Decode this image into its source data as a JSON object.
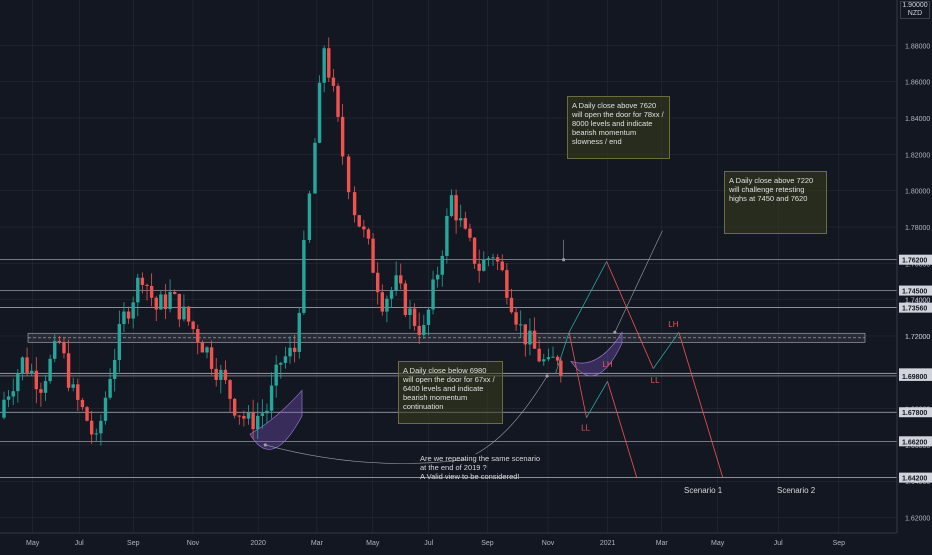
{
  "currency": {
    "line1": "1.90000",
    "line2": "NZD"
  },
  "colors": {
    "bg": "#131722",
    "up": "#26a69a",
    "down": "#ef5350",
    "grid": "#2a2e39",
    "level": "#b2b5be",
    "proj_up": "#26a69a",
    "proj_down": "#ef5350",
    "axis_text": "#b2b5be"
  },
  "chart_data": {
    "type": "candlestick",
    "ylim": [
      1.6115,
      1.905
    ],
    "y_ticks": [
      "1.62000",
      "1.64000",
      "1.66000",
      "1.68000",
      "1.70000",
      "1.72000",
      "1.74000",
      "1.76000",
      "1.78000",
      "1.80000",
      "1.82000",
      "1.84000",
      "1.86000",
      "1.88000"
    ],
    "y_tick_values": [
      1.62,
      1.64,
      1.66,
      1.68,
      1.7,
      1.72,
      1.74,
      1.76,
      1.78,
      1.8,
      1.82,
      1.84,
      1.86,
      1.88
    ],
    "x_ticks": [
      "May",
      "Jul",
      "Sep",
      "Nov",
      "2020",
      "Mar",
      "May",
      "Jul",
      "Sep",
      "Nov",
      "2021",
      "Mar",
      "May",
      "Jul",
      "Sep"
    ],
    "x_tick_pos": [
      0.035,
      0.085,
      0.143,
      0.207,
      0.277,
      0.34,
      0.4,
      0.46,
      0.523,
      0.588,
      0.652,
      0.71,
      0.77,
      0.835,
      0.9
    ],
    "price_levels": [
      {
        "label": "1.76200",
        "value": 1.762
      },
      {
        "label": "1.74500",
        "value": 1.745
      },
      {
        "label": "1.73560",
        "value": 1.7356
      },
      {
        "label": "1.69941",
        "value": 1.69941
      },
      {
        "label": "1.69800",
        "value": 1.698
      },
      {
        "label": "1.67800",
        "value": 1.678
      },
      {
        "label": "1.66200",
        "value": 1.662
      },
      {
        "label": "1.64200",
        "value": 1.642
      }
    ],
    "extra_axis_labels": [
      {
        "label": "1.74000",
        "value": 1.74
      },
      {
        "label": "1.72000",
        "value": 1.72
      }
    ],
    "zone": [
      1.7165,
      1.7215
    ],
    "zone_dashed": 1.719,
    "candles_ohlc_anchor": [
      [
        0.0,
        1.675,
        1.69,
        1.67,
        1.685
      ],
      [
        0.02,
        1.69,
        1.712,
        1.684,
        1.706
      ],
      [
        0.04,
        1.7,
        1.716,
        1.688,
        1.694
      ],
      [
        0.06,
        1.693,
        1.722,
        1.688,
        1.716
      ],
      [
        0.075,
        1.716,
        1.728,
        1.678,
        1.688
      ],
      [
        0.09,
        1.688,
        1.698,
        1.667,
        1.674
      ],
      [
        0.1,
        1.674,
        1.684,
        1.652,
        1.66
      ],
      [
        0.115,
        1.662,
        1.712,
        1.655,
        1.7
      ],
      [
        0.13,
        1.7,
        1.742,
        1.695,
        1.73
      ],
      [
        0.15,
        1.73,
        1.762,
        1.722,
        1.755
      ],
      [
        0.165,
        1.75,
        1.758,
        1.728,
        1.735
      ],
      [
        0.18,
        1.735,
        1.748,
        1.725,
        1.742
      ],
      [
        0.2,
        1.742,
        1.746,
        1.718,
        1.728
      ],
      [
        0.22,
        1.728,
        1.734,
        1.706,
        1.712
      ],
      [
        0.235,
        1.712,
        1.718,
        1.69,
        1.698
      ],
      [
        0.25,
        1.698,
        1.704,
        1.675,
        1.682
      ],
      [
        0.265,
        1.68,
        1.69,
        1.662,
        1.672
      ],
      [
        0.285,
        1.672,
        1.686,
        1.664,
        1.68
      ],
      [
        0.3,
        1.68,
        1.712,
        1.676,
        1.706
      ],
      [
        0.315,
        1.706,
        1.72,
        1.692,
        1.712
      ],
      [
        0.325,
        1.712,
        1.772,
        1.708,
        1.766
      ],
      [
        0.337,
        1.766,
        1.832,
        1.762,
        1.826
      ],
      [
        0.347,
        1.826,
        1.905,
        1.822,
        1.88
      ],
      [
        0.357,
        1.88,
        1.895,
        1.845,
        1.852
      ],
      [
        0.367,
        1.852,
        1.862,
        1.812,
        1.82
      ],
      [
        0.38,
        1.82,
        1.832,
        1.782,
        1.79
      ],
      [
        0.395,
        1.79,
        1.798,
        1.76,
        1.768
      ],
      [
        0.41,
        1.768,
        1.775,
        1.734,
        1.74
      ],
      [
        0.425,
        1.74,
        1.752,
        1.728,
        1.748
      ],
      [
        0.44,
        1.748,
        1.758,
        1.726,
        1.732
      ],
      [
        0.455,
        1.732,
        1.742,
        1.716,
        1.722
      ],
      [
        0.47,
        1.722,
        1.762,
        1.718,
        1.756
      ],
      [
        0.485,
        1.756,
        1.802,
        1.752,
        1.796
      ],
      [
        0.5,
        1.796,
        1.806,
        1.768,
        1.774
      ],
      [
        0.515,
        1.774,
        1.782,
        1.752,
        1.758
      ],
      [
        0.53,
        1.758,
        1.772,
        1.748,
        1.766
      ],
      [
        0.545,
        1.766,
        1.772,
        1.742,
        1.748
      ],
      [
        0.56,
        1.748,
        1.752,
        1.718,
        1.724
      ],
      [
        0.575,
        1.724,
        1.73,
        1.704,
        1.712
      ],
      [
        0.59,
        1.712,
        1.718,
        1.697,
        1.702
      ],
      [
        0.6,
        1.702,
        1.715,
        1.698,
        1.71
      ],
      [
        0.607,
        1.71,
        1.716,
        1.696,
        1.699
      ]
    ],
    "projections": [
      {
        "color": "up",
        "points": [
          [
            1.699,
            0.607
          ],
          [
            1.722,
            0.622
          ]
        ]
      },
      {
        "color": "down",
        "points": [
          [
            1.722,
            0.622
          ],
          [
            1.675,
            0.641
          ]
        ]
      },
      {
        "color": "up",
        "points": [
          [
            1.675,
            0.641
          ],
          [
            1.695,
            0.664
          ]
        ]
      },
      {
        "color": "down",
        "points": [
          [
            1.695,
            0.664
          ],
          [
            1.642,
            0.696
          ]
        ]
      },
      {
        "color": "up",
        "points": [
          [
            1.722,
            0.622
          ],
          [
            1.761,
            0.663
          ]
        ]
      },
      {
        "color": "down",
        "points": [
          [
            1.761,
            0.663
          ],
          [
            1.702,
            0.714
          ]
        ]
      },
      {
        "color": "up",
        "points": [
          [
            1.702,
            0.714
          ],
          [
            1.722,
            0.742
          ]
        ]
      },
      {
        "color": "down",
        "points": [
          [
            1.722,
            0.742
          ],
          [
            1.642,
            0.79
          ]
        ]
      }
    ],
    "arrows": [
      {
        "from": [
          1.773,
          0.616
        ],
        "to": [
          1.762,
          0.616
        ]
      },
      {
        "from": [
          1.778,
          0.724
        ],
        "to": [
          1.722,
          0.672
        ]
      },
      {
        "from": [
          1.655,
          0.52
        ],
        "to": [
          1.698,
          0.598
        ]
      },
      {
        "from": [
          1.652,
          0.51
        ],
        "to": [
          1.66,
          0.29
        ]
      }
    ],
    "wave_labels": [
      {
        "text": "LH",
        "value": 1.703,
        "xpos": 0.664,
        "color": "down"
      },
      {
        "text": "LL",
        "value": 1.668,
        "xpos": 0.64,
        "color": "down"
      },
      {
        "text": "LL",
        "value": 1.694,
        "xpos": 0.716,
        "color": "down"
      },
      {
        "text": "LH",
        "value": 1.725,
        "xpos": 0.736,
        "color": "down"
      }
    ],
    "notes": [
      {
        "text": "A Daily close above 7620 will open the door for 78xx / 8000 levels and indicate bearish momentum slowness / end"
      },
      {
        "text": "A Daily close above 7220 will challenge retesting highs at 7450 and 7620"
      },
      {
        "text": "A Daily close below 6980 will open the door for 67xx / 6400 levels and indicate bearish momentum continuation"
      }
    ],
    "question": {
      "line1": "Are we repeating the same scenario",
      "line2": "at the end of 2019 ?",
      "line3": "A Valid view to be considered!"
    },
    "scenarios": [
      "Scenario 1",
      "Scenario 2"
    ]
  }
}
